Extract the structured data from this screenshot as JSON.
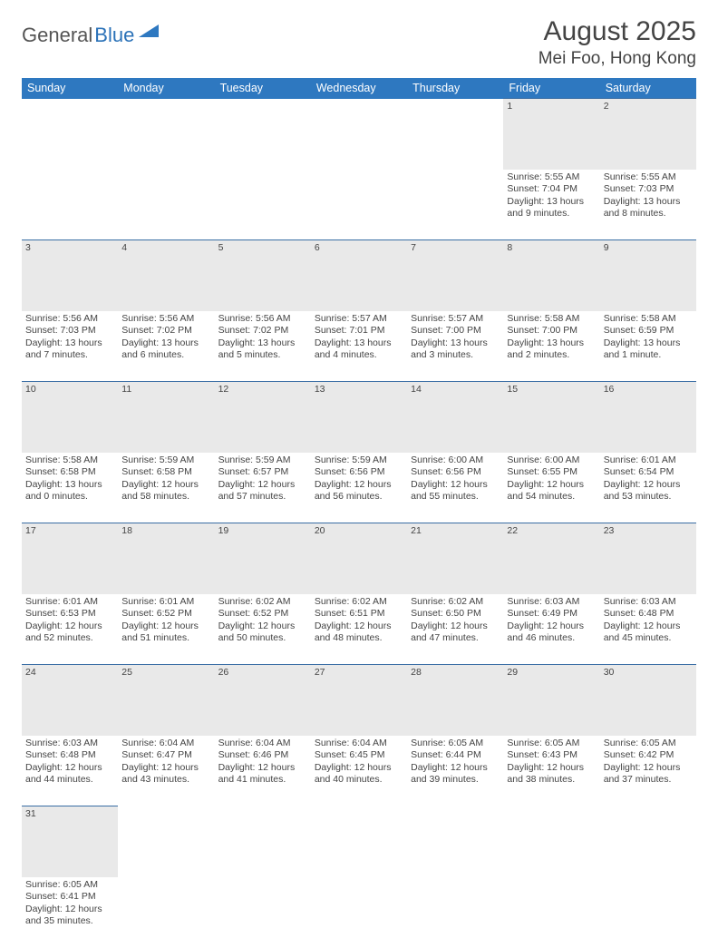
{
  "logo": {
    "part1": "General",
    "part2": "Blue",
    "triangle_color": "#2e78c0"
  },
  "title": {
    "month": "August 2025",
    "location": "Mei Foo, Hong Kong"
  },
  "colors": {
    "header_bg": "#2e78c0",
    "header_text": "#ffffff",
    "daynum_bg": "#e9e9e9",
    "row_border": "#3a6ea5",
    "body_text": "#444444"
  },
  "weekdays": [
    "Sunday",
    "Monday",
    "Tuesday",
    "Wednesday",
    "Thursday",
    "Friday",
    "Saturday"
  ],
  "weeks": [
    {
      "nums": [
        "",
        "",
        "",
        "",
        "",
        "1",
        "2"
      ],
      "cells": [
        null,
        null,
        null,
        null,
        null,
        {
          "sunrise": "Sunrise: 5:55 AM",
          "sunset": "Sunset: 7:04 PM",
          "day1": "Daylight: 13 hours",
          "day2": "and 9 minutes."
        },
        {
          "sunrise": "Sunrise: 5:55 AM",
          "sunset": "Sunset: 7:03 PM",
          "day1": "Daylight: 13 hours",
          "day2": "and 8 minutes."
        }
      ]
    },
    {
      "nums": [
        "3",
        "4",
        "5",
        "6",
        "7",
        "8",
        "9"
      ],
      "cells": [
        {
          "sunrise": "Sunrise: 5:56 AM",
          "sunset": "Sunset: 7:03 PM",
          "day1": "Daylight: 13 hours",
          "day2": "and 7 minutes."
        },
        {
          "sunrise": "Sunrise: 5:56 AM",
          "sunset": "Sunset: 7:02 PM",
          "day1": "Daylight: 13 hours",
          "day2": "and 6 minutes."
        },
        {
          "sunrise": "Sunrise: 5:56 AM",
          "sunset": "Sunset: 7:02 PM",
          "day1": "Daylight: 13 hours",
          "day2": "and 5 minutes."
        },
        {
          "sunrise": "Sunrise: 5:57 AM",
          "sunset": "Sunset: 7:01 PM",
          "day1": "Daylight: 13 hours",
          "day2": "and 4 minutes."
        },
        {
          "sunrise": "Sunrise: 5:57 AM",
          "sunset": "Sunset: 7:00 PM",
          "day1": "Daylight: 13 hours",
          "day2": "and 3 minutes."
        },
        {
          "sunrise": "Sunrise: 5:58 AM",
          "sunset": "Sunset: 7:00 PM",
          "day1": "Daylight: 13 hours",
          "day2": "and 2 minutes."
        },
        {
          "sunrise": "Sunrise: 5:58 AM",
          "sunset": "Sunset: 6:59 PM",
          "day1": "Daylight: 13 hours",
          "day2": "and 1 minute."
        }
      ]
    },
    {
      "nums": [
        "10",
        "11",
        "12",
        "13",
        "14",
        "15",
        "16"
      ],
      "cells": [
        {
          "sunrise": "Sunrise: 5:58 AM",
          "sunset": "Sunset: 6:58 PM",
          "day1": "Daylight: 13 hours",
          "day2": "and 0 minutes."
        },
        {
          "sunrise": "Sunrise: 5:59 AM",
          "sunset": "Sunset: 6:58 PM",
          "day1": "Daylight: 12 hours",
          "day2": "and 58 minutes."
        },
        {
          "sunrise": "Sunrise: 5:59 AM",
          "sunset": "Sunset: 6:57 PM",
          "day1": "Daylight: 12 hours",
          "day2": "and 57 minutes."
        },
        {
          "sunrise": "Sunrise: 5:59 AM",
          "sunset": "Sunset: 6:56 PM",
          "day1": "Daylight: 12 hours",
          "day2": "and 56 minutes."
        },
        {
          "sunrise": "Sunrise: 6:00 AM",
          "sunset": "Sunset: 6:56 PM",
          "day1": "Daylight: 12 hours",
          "day2": "and 55 minutes."
        },
        {
          "sunrise": "Sunrise: 6:00 AM",
          "sunset": "Sunset: 6:55 PM",
          "day1": "Daylight: 12 hours",
          "day2": "and 54 minutes."
        },
        {
          "sunrise": "Sunrise: 6:01 AM",
          "sunset": "Sunset: 6:54 PM",
          "day1": "Daylight: 12 hours",
          "day2": "and 53 minutes."
        }
      ]
    },
    {
      "nums": [
        "17",
        "18",
        "19",
        "20",
        "21",
        "22",
        "23"
      ],
      "cells": [
        {
          "sunrise": "Sunrise: 6:01 AM",
          "sunset": "Sunset: 6:53 PM",
          "day1": "Daylight: 12 hours",
          "day2": "and 52 minutes."
        },
        {
          "sunrise": "Sunrise: 6:01 AM",
          "sunset": "Sunset: 6:52 PM",
          "day1": "Daylight: 12 hours",
          "day2": "and 51 minutes."
        },
        {
          "sunrise": "Sunrise: 6:02 AM",
          "sunset": "Sunset: 6:52 PM",
          "day1": "Daylight: 12 hours",
          "day2": "and 50 minutes."
        },
        {
          "sunrise": "Sunrise: 6:02 AM",
          "sunset": "Sunset: 6:51 PM",
          "day1": "Daylight: 12 hours",
          "day2": "and 48 minutes."
        },
        {
          "sunrise": "Sunrise: 6:02 AM",
          "sunset": "Sunset: 6:50 PM",
          "day1": "Daylight: 12 hours",
          "day2": "and 47 minutes."
        },
        {
          "sunrise": "Sunrise: 6:03 AM",
          "sunset": "Sunset: 6:49 PM",
          "day1": "Daylight: 12 hours",
          "day2": "and 46 minutes."
        },
        {
          "sunrise": "Sunrise: 6:03 AM",
          "sunset": "Sunset: 6:48 PM",
          "day1": "Daylight: 12 hours",
          "day2": "and 45 minutes."
        }
      ]
    },
    {
      "nums": [
        "24",
        "25",
        "26",
        "27",
        "28",
        "29",
        "30"
      ],
      "cells": [
        {
          "sunrise": "Sunrise: 6:03 AM",
          "sunset": "Sunset: 6:48 PM",
          "day1": "Daylight: 12 hours",
          "day2": "and 44 minutes."
        },
        {
          "sunrise": "Sunrise: 6:04 AM",
          "sunset": "Sunset: 6:47 PM",
          "day1": "Daylight: 12 hours",
          "day2": "and 43 minutes."
        },
        {
          "sunrise": "Sunrise: 6:04 AM",
          "sunset": "Sunset: 6:46 PM",
          "day1": "Daylight: 12 hours",
          "day2": "and 41 minutes."
        },
        {
          "sunrise": "Sunrise: 6:04 AM",
          "sunset": "Sunset: 6:45 PM",
          "day1": "Daylight: 12 hours",
          "day2": "and 40 minutes."
        },
        {
          "sunrise": "Sunrise: 6:05 AM",
          "sunset": "Sunset: 6:44 PM",
          "day1": "Daylight: 12 hours",
          "day2": "and 39 minutes."
        },
        {
          "sunrise": "Sunrise: 6:05 AM",
          "sunset": "Sunset: 6:43 PM",
          "day1": "Daylight: 12 hours",
          "day2": "and 38 minutes."
        },
        {
          "sunrise": "Sunrise: 6:05 AM",
          "sunset": "Sunset: 6:42 PM",
          "day1": "Daylight: 12 hours",
          "day2": "and 37 minutes."
        }
      ]
    },
    {
      "nums": [
        "31",
        "",
        "",
        "",
        "",
        "",
        ""
      ],
      "cells": [
        {
          "sunrise": "Sunrise: 6:05 AM",
          "sunset": "Sunset: 6:41 PM",
          "day1": "Daylight: 12 hours",
          "day2": "and 35 minutes."
        },
        null,
        null,
        null,
        null,
        null,
        null
      ]
    }
  ]
}
